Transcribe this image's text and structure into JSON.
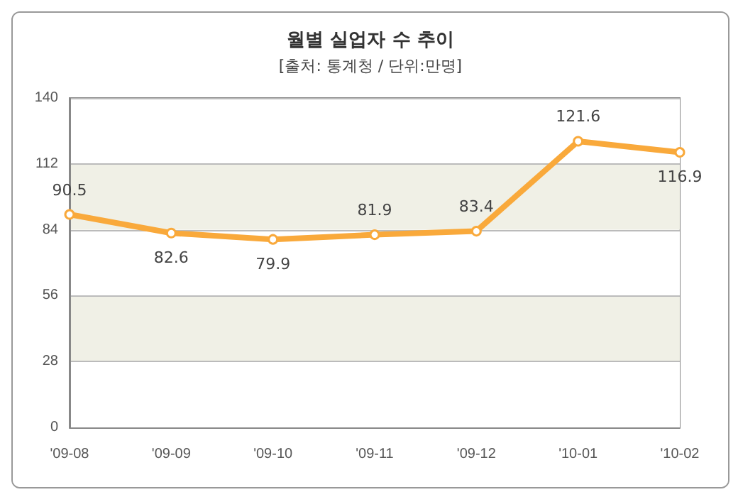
{
  "chart_data": {
    "type": "line",
    "title": "월별 실업자 수 추이",
    "subtitle": "[출처: 통계청 / 단위:만명]",
    "categories": [
      "'09-08",
      "'09-09",
      "'09-10",
      "'09-11",
      "'09-12",
      "'10-01",
      "'10-02"
    ],
    "series": [
      {
        "color": "#f9a93b",
        "values": [
          90.5,
          82.6,
          79.9,
          81.9,
          83.4,
          121.6,
          116.9
        ]
      }
    ],
    "ylim": [
      0,
      140
    ],
    "yticks": [
      0,
      28,
      56,
      84,
      112,
      140
    ],
    "grid": "y",
    "data_labels": true,
    "marker": "circle",
    "line_style": "solid"
  }
}
